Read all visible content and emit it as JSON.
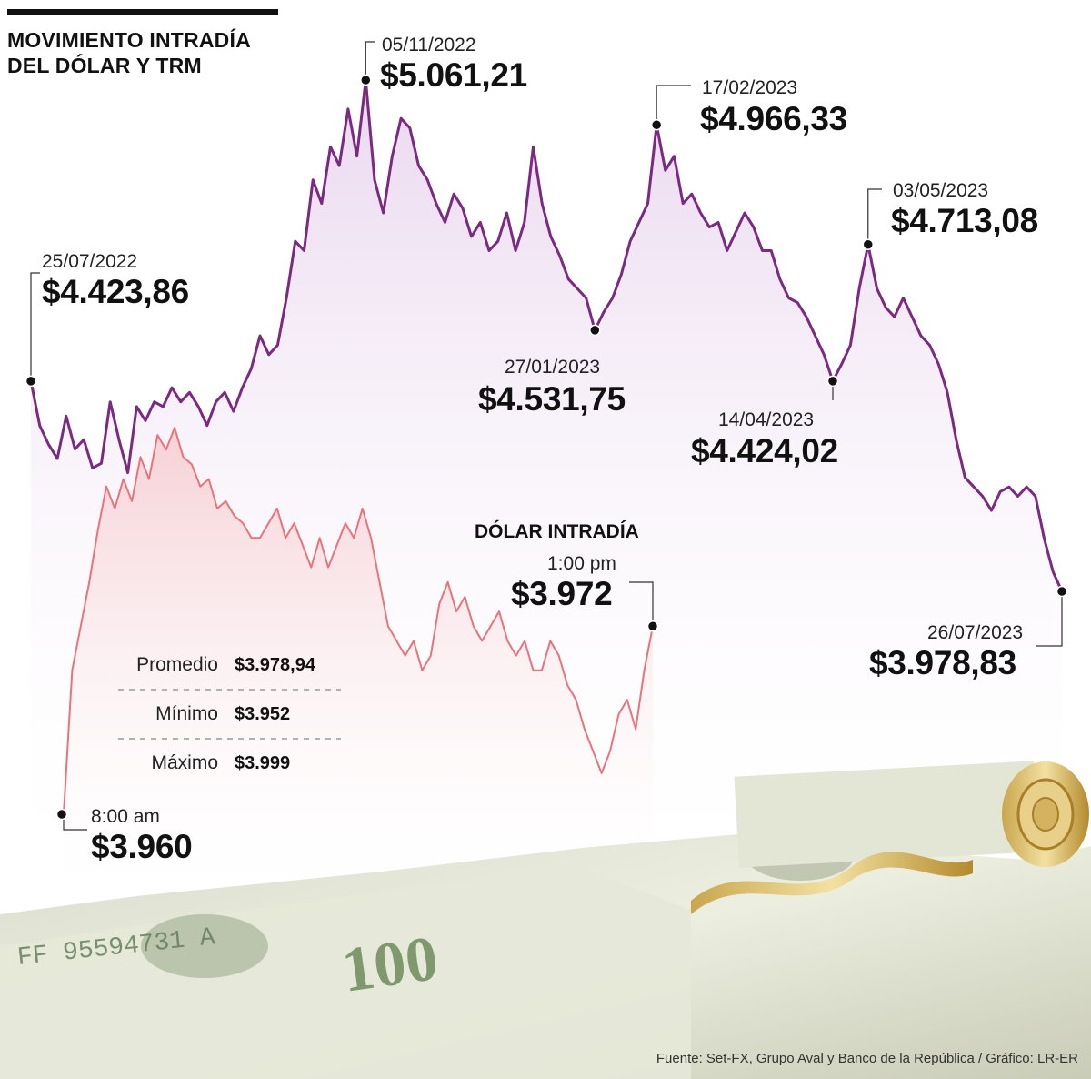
{
  "title": [
    "MOVIMIENTO INTRADÍA",
    "DEL DÓLAR Y TRM"
  ],
  "source": "Fuente: Set-FX, Grupo Aval y Banco de la República / Gráfico: LR-ER",
  "colors": {
    "trm": "#7b2a82",
    "trm_fill": "#efe2f1",
    "intraday": "#e8737c",
    "intraday_fill": "#f7d7da",
    "money_green": "#7a8b6a"
  },
  "background_image": "rolled-100-dollar-bill",
  "chart_data": [
    {
      "type": "line",
      "name": "TRM",
      "ylim": [
        3850,
        5100
      ],
      "series": [
        {
          "name": "TRM",
          "values": [
            4423.86,
            4330,
            4290,
            4260,
            4350,
            4280,
            4300,
            4240,
            4250,
            4380,
            4300,
            4230,
            4370,
            4340,
            4380,
            4370,
            4410,
            4380,
            4400,
            4370,
            4330,
            4380,
            4400,
            4360,
            4410,
            4450,
            4520,
            4480,
            4500,
            4600,
            4720,
            4700,
            4850,
            4800,
            4920,
            4880,
            5000,
            4900,
            5061.21,
            4850,
            4780,
            4900,
            4980,
            4960,
            4880,
            4850,
            4800,
            4760,
            4820,
            4790,
            4730,
            4760,
            4700,
            4720,
            4780,
            4700,
            4760,
            4920,
            4800,
            4730,
            4690,
            4640,
            4620,
            4600,
            4531.75,
            4570,
            4600,
            4650,
            4720,
            4760,
            4800,
            4966.33,
            4870,
            4900,
            4800,
            4820,
            4780,
            4750,
            4760,
            4700,
            4740,
            4780,
            4750,
            4700,
            4700,
            4640,
            4600,
            4590,
            4560,
            4520,
            4480,
            4424.02,
            4460,
            4500,
            4620,
            4713.08,
            4620,
            4580,
            4560,
            4600,
            4560,
            4520,
            4500,
            4460,
            4400,
            4300,
            4220,
            4200,
            4180,
            4150,
            4190,
            4200,
            4180,
            4200,
            4180,
            4090,
            4020,
            3978.83
          ]
        }
      ],
      "annotations": [
        {
          "date": "25/07/2022",
          "value": "$4.423,86"
        },
        {
          "date": "05/11/2022",
          "value": "$5.061,21"
        },
        {
          "date": "27/01/2023",
          "value": "$4.531,75"
        },
        {
          "date": "17/02/2023",
          "value": "$4.966,33"
        },
        {
          "date": "14/04/2023",
          "value": "$4.424,02"
        },
        {
          "date": "03/05/2023",
          "value": "$4.713,08"
        },
        {
          "date": "26/07/2023",
          "value": "$3.978,83"
        }
      ]
    },
    {
      "type": "line",
      "name": "DÓLAR INTRADÍA",
      "ylim": [
        3940,
        4010
      ],
      "series": [
        {
          "name": "DÓLAR INTRADÍA",
          "values": [
            3960,
            3966,
            3972,
            3978,
            3985,
            3991,
            3988,
            3992,
            3989,
            3995,
            3992,
            3998,
            3996,
            3999,
            3995,
            3994,
            3991,
            3992,
            3988,
            3989,
            3987,
            3986,
            3984,
            3984,
            3986,
            3988,
            3984,
            3986,
            3983,
            3980,
            3984,
            3980,
            3983,
            3986,
            3984,
            3988,
            3984,
            3978,
            3972,
            3970,
            3968,
            3970,
            3966,
            3968,
            3975,
            3978,
            3974,
            3976,
            3972,
            3970,
            3972,
            3974,
            3970,
            3968,
            3970,
            3966,
            3966,
            3970,
            3968,
            3964,
            3962,
            3958,
            3955,
            3952,
            3955,
            3960,
            3962,
            3958,
            3966,
            3972
          ]
        }
      ],
      "x_start_label": "8:00 am",
      "x_end_label": "1:00 pm",
      "start_value": "$3.960",
      "end_value": "$3.972",
      "stats": [
        {
          "label": "Promedio",
          "value": "$3.978,94"
        },
        {
          "label": "Mínimo",
          "value": "$3.952"
        },
        {
          "label": "Máximo",
          "value": "$3.999"
        }
      ]
    }
  ]
}
